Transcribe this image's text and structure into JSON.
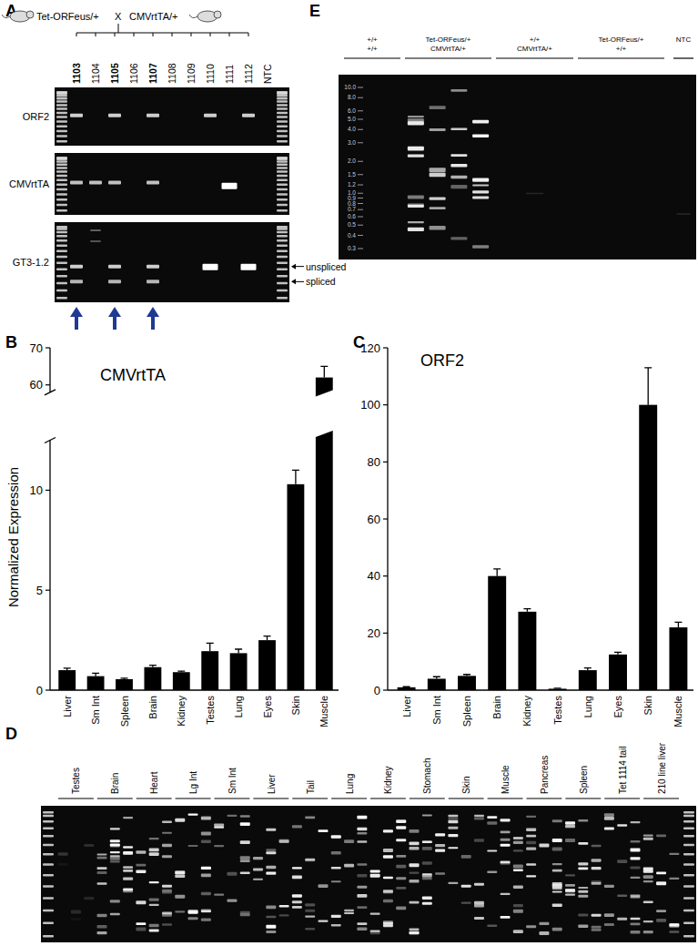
{
  "panel_labels": [
    "A",
    "B",
    "C",
    "D",
    "E"
  ],
  "panel_a": {
    "cross": {
      "parent1": "Tet-ORFeus/+",
      "symbol": "X",
      "parent2": "CMVrtTA/+"
    },
    "lanes": [
      "1103",
      "1104",
      "1105",
      "1106",
      "1107",
      "1108",
      "1109",
      "1110",
      "1111",
      "1112",
      "NTC"
    ],
    "marked_lanes": [
      0,
      2,
      4
    ],
    "rows": [
      "ORF2",
      "CMVrtTA",
      "GT3-1.2"
    ],
    "band_labels": [
      "unspliced",
      "spliced"
    ]
  },
  "panel_e": {
    "groups": [
      {
        "lines": [
          "+/+",
          "+/+"
        ]
      },
      {
        "lines": [
          "Tet-ORFeus/+",
          "CMVrtTA/+"
        ]
      },
      {
        "lines": [
          "+/+",
          "CMVrtTA/+"
        ]
      },
      {
        "lines": [
          "Tet-ORFeus/+",
          "+/+"
        ]
      },
      {
        "lines": [
          "NTC"
        ]
      }
    ],
    "ladder": [
      {
        "value": 10,
        "label": "10.0"
      },
      {
        "value": 8,
        "label": "8.0"
      },
      {
        "value": 6,
        "label": "6.0"
      },
      {
        "value": 5,
        "label": "5.0"
      },
      {
        "value": 4,
        "label": "4.0"
      },
      {
        "value": 3,
        "label": "3.0"
      },
      {
        "value": 2,
        "label": "2.0"
      },
      1.5,
      1.2,
      {
        "value": 1,
        "label": "1.0"
      },
      0.9,
      0.8,
      0.7,
      0.6,
      0.5,
      0.4,
      0.3
    ]
  },
  "panel_d": {
    "lanes": [
      "Testes",
      "Brain",
      "Heart",
      "Lg Int",
      "Sm Int",
      "Liver",
      "Tail",
      "Lung",
      "Kidney",
      "Stomach",
      "Skin",
      "Muscle",
      "Pancreas",
      "Spleen",
      "Tet 1114 tail",
      "210 line liver"
    ]
  },
  "chart_data": [
    {
      "type": "bar",
      "title": "CMVrtTA",
      "y_label": "Normalized Expression",
      "categories": [
        "Liver",
        "Sm Int",
        "Spleen",
        "Brain",
        "Kidney",
        "Testes",
        "Lung",
        "Eyes",
        "Skin",
        "Muscle"
      ],
      "values": [
        1.0,
        0.7,
        0.55,
        1.15,
        0.9,
        1.95,
        1.85,
        2.5,
        10.3,
        62
      ],
      "errors": [
        0.1,
        0.15,
        0.05,
        0.1,
        0.05,
        0.4,
        0.2,
        0.2,
        0.7,
        3
      ],
      "color": "#000000",
      "ylim": [
        0,
        70
      ],
      "yticks": [
        0,
        5,
        10,
        60,
        70
      ],
      "ybreak": [
        12.5,
        58
      ]
    },
    {
      "type": "bar",
      "title": "ORF2",
      "categories": [
        "Liver",
        "Sm Int",
        "Spleen",
        "Brain",
        "Kidney",
        "Testes",
        "Lung",
        "Eyes",
        "Skin",
        "Muscle"
      ],
      "values": [
        1,
        4,
        5,
        40,
        27.5,
        0.5,
        7,
        12.5,
        100,
        22
      ],
      "errors": [
        0.2,
        0.7,
        0.5,
        2.5,
        1,
        0.2,
        0.8,
        0.8,
        13,
        1.8
      ],
      "color": "#000000",
      "ylim": [
        0,
        120
      ],
      "yticks": [
        0,
        20,
        40,
        60,
        80,
        100,
        120
      ]
    }
  ]
}
